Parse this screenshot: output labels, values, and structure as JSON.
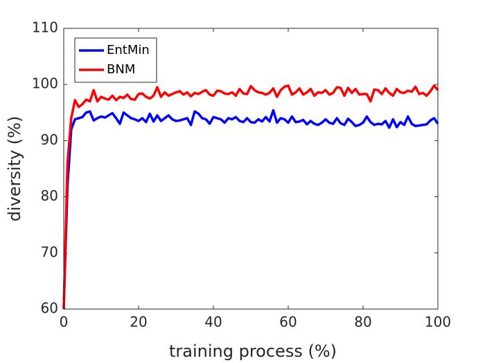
{
  "chart_data": {
    "type": "line",
    "x_label": "training process (%)",
    "y_label": "diversity (%)",
    "x": [
      0,
      1,
      2,
      3,
      4,
      5,
      6,
      7,
      8,
      9,
      10,
      11,
      12,
      13,
      14,
      15,
      16,
      17,
      18,
      19,
      20,
      21,
      22,
      23,
      24,
      25,
      26,
      27,
      28,
      29,
      30,
      31,
      32,
      33,
      34,
      35,
      36,
      37,
      38,
      39,
      40,
      41,
      42,
      43,
      44,
      45,
      46,
      47,
      48,
      49,
      50,
      51,
      52,
      53,
      54,
      55,
      56,
      57,
      58,
      59,
      60,
      61,
      62,
      63,
      64,
      65,
      66,
      67,
      68,
      69,
      70,
      71,
      72,
      73,
      74,
      75,
      76,
      77,
      78,
      79,
      80,
      81,
      82,
      83,
      84,
      85,
      86,
      87,
      88,
      89,
      90,
      91,
      92,
      93,
      94,
      95,
      96,
      97,
      98,
      99,
      100
    ],
    "series": [
      {
        "name": "EntMin",
        "color": "#0000ff",
        "values": [
          60,
          82,
          92,
          93.8,
          94,
          94.2,
          95,
          95.2,
          93.6,
          94,
          94.3,
          94.1,
          94.5,
          94.9,
          94,
          93,
          95,
          94.5,
          94,
          93.8,
          93.5,
          94,
          93.3,
          94.8,
          93.4,
          94.5,
          93.5,
          94,
          94.5,
          93.8,
          93.5,
          93.6,
          93.8,
          94,
          92.8,
          95.2,
          94.8,
          94,
          93.8,
          93,
          94.2,
          94,
          93.8,
          93.2,
          94,
          93.8,
          94.2,
          93.5,
          93.3,
          94,
          93.3,
          93.2,
          93.8,
          93.4,
          94.2,
          93.4,
          95.4,
          93.2,
          94,
          93.8,
          93.2,
          94.3,
          93.3,
          93.4,
          93.7,
          92.9,
          93.5,
          93,
          92.8,
          93.2,
          93.8,
          93.2,
          93,
          94,
          93.1,
          92.8,
          93.9,
          93.3,
          92.6,
          92.8,
          93.2,
          94.3,
          93.3,
          92.8,
          93,
          92.9,
          93.5,
          92.3,
          93.8,
          92.4,
          93.3,
          92.8,
          94.3,
          93,
          92.6,
          92.7,
          92.8,
          92.9,
          93.6,
          94,
          93
        ]
      },
      {
        "name": "BNM",
        "color": "#ff0000",
        "values": [
          60,
          86,
          94,
          97.2,
          96,
          96.5,
          97.3,
          97,
          99,
          97,
          97.8,
          97.5,
          97.3,
          98,
          97.2,
          97.8,
          97.6,
          98.2,
          97.4,
          97.3,
          98.3,
          98.4,
          97.8,
          97.5,
          98,
          99.5,
          97.8,
          98.6,
          98,
          98.3,
          98.6,
          98.8,
          98.2,
          98.6,
          97.9,
          98.5,
          98.3,
          98.7,
          99,
          98.2,
          98,
          98.9,
          98.8,
          98.4,
          98.3,
          98.6,
          98,
          99.2,
          98.4,
          98.3,
          99.7,
          99,
          98.6,
          98.5,
          98.2,
          98.5,
          99.3,
          97.8,
          99,
          99.6,
          99.8,
          98.2,
          98.6,
          99.3,
          98.2,
          98.6,
          99.2,
          98,
          98.6,
          98.5,
          99,
          98.2,
          98.5,
          99.5,
          99.4,
          98,
          99.4,
          98.5,
          99.2,
          98.2,
          98.3,
          98.3,
          97,
          99.1,
          99,
          98.3,
          99.3,
          98.5,
          98,
          99.2,
          98.6,
          98.5,
          98.9,
          98.7,
          99.6,
          98.3,
          98.5,
          98,
          98.8,
          99.8,
          99
        ]
      }
    ],
    "xlim": [
      0,
      100
    ],
    "xticks": [
      0,
      20,
      40,
      60,
      80,
      100
    ],
    "ylim": [
      60,
      110
    ],
    "yticks": [
      60,
      70,
      80,
      90,
      100,
      110
    ],
    "grid": false,
    "legend": "top-left"
  }
}
